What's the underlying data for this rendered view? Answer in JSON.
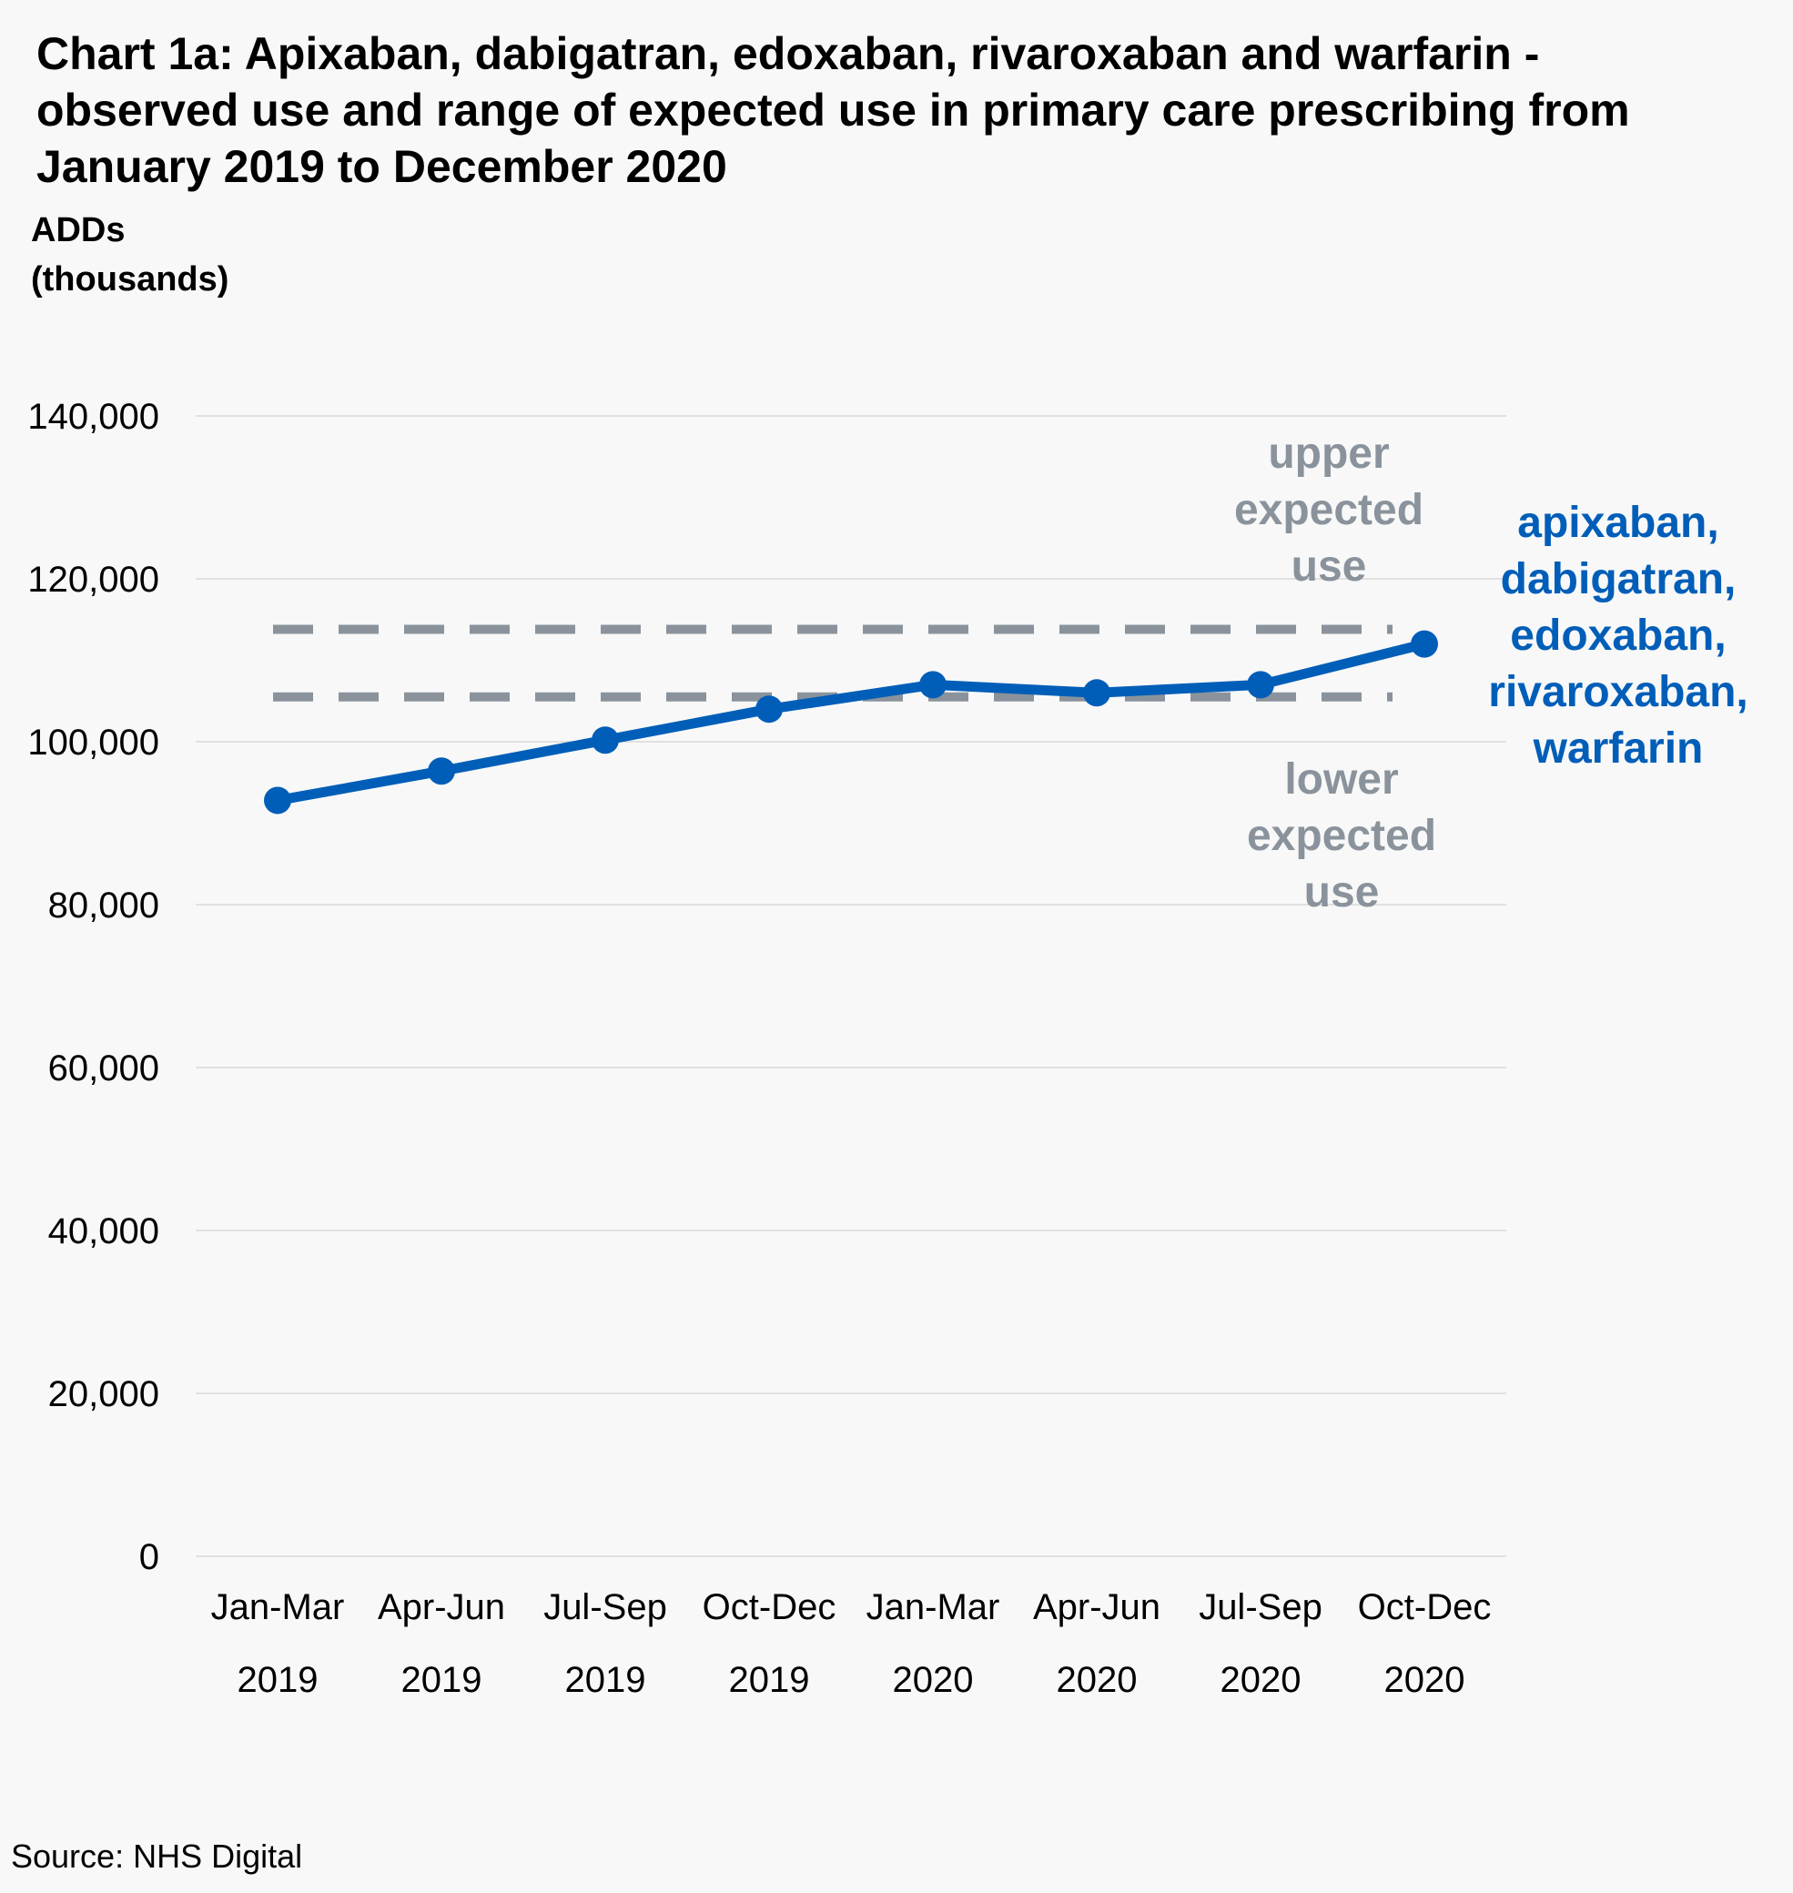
{
  "page": {
    "title": "Chart 1a: Apixaban, dabigatran, edoxaban, rivaroxaban and warfarin - observed use and range of expected use in primary care prescribing from January 2019 to December 2020",
    "source": "Source: NHS Digital"
  },
  "chart_data": {
    "type": "line",
    "title": "Chart 1a: Apixaban, dabigatran, edoxaban, rivaroxaban and warfarin - observed use and range of expected use in primary care prescribing from January 2019 to December 2020",
    "xlabel": "",
    "ylabel": [
      "ADDs",
      "(thousands)"
    ],
    "ylim": [
      0,
      140000
    ],
    "yticks": [
      "0",
      "20,000",
      "40,000",
      "60,000",
      "80,000",
      "100,000",
      "120,000",
      "140,000"
    ],
    "ytick_values": [
      0,
      20000,
      40000,
      60000,
      80000,
      100000,
      120000,
      140000
    ],
    "grid": true,
    "categories": [
      [
        "Jan-Mar",
        "2019"
      ],
      [
        "Apr-Jun",
        "2019"
      ],
      [
        "Jul-Sep",
        "2019"
      ],
      [
        "Oct-Dec",
        "2019"
      ],
      [
        "Jan-Mar",
        "2020"
      ],
      [
        "Apr-Jun",
        "2020"
      ],
      [
        "Jul-Sep",
        "2020"
      ],
      [
        "Oct-Dec",
        "2020"
      ]
    ],
    "series": [
      {
        "name": [
          "apixaban,",
          "dabigatran,",
          "edoxaban,",
          "rivaroxaban,",
          "warfarin"
        ],
        "color": "#005eb8",
        "style": "solid-markers",
        "values": [
          92800,
          96400,
          100200,
          104000,
          107000,
          106000,
          107000,
          112000
        ]
      },
      {
        "name": [
          "upper",
          "expected",
          "use"
        ],
        "color": "#8a939c",
        "style": "dashed",
        "values": [
          113800,
          113800,
          113800,
          113800,
          113800,
          113800,
          113800,
          113800
        ]
      },
      {
        "name": [
          "lower",
          "expected",
          "use"
        ],
        "color": "#8a939c",
        "style": "dashed",
        "values": [
          105500,
          105500,
          105500,
          105500,
          105500,
          105500,
          105500,
          105500
        ]
      }
    ]
  }
}
